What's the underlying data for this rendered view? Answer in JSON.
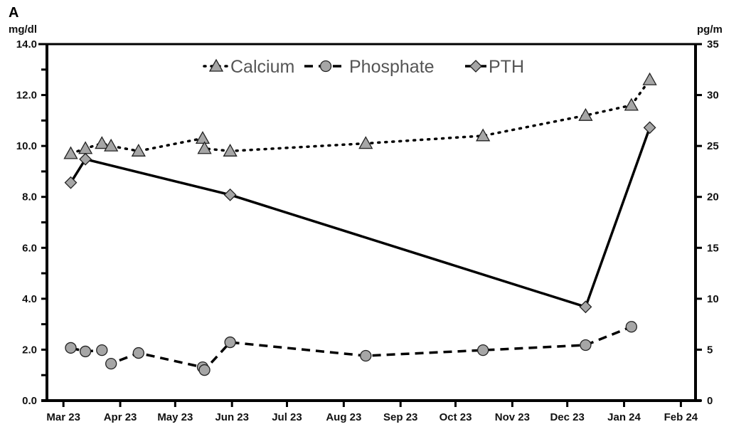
{
  "chart_data": {
    "type": "line",
    "panel_label": "A",
    "ylabel_left": "mg/dl",
    "ylabel_right": "pg/m",
    "ylim_left": [
      0,
      14
    ],
    "ylim_right": [
      0,
      35
    ],
    "yticks_left": [
      "0.0",
      "2.0",
      "4.0",
      "6.0",
      "8.0",
      "10.0",
      "12.0",
      "14.0"
    ],
    "yticks_right": [
      "0",
      "5",
      "10",
      "15",
      "20",
      "25",
      "30",
      "35"
    ],
    "xlim": [
      "2023-02-20",
      "2024-02-09"
    ],
    "xticks": [
      {
        "date": "2023-03-01",
        "label": "Mar 23"
      },
      {
        "date": "2023-04-01",
        "label": "Apr 23"
      },
      {
        "date": "2023-05-01",
        "label": "May 23"
      },
      {
        "date": "2023-06-01",
        "label": "Jun 23"
      },
      {
        "date": "2023-07-01",
        "label": "Jul 23"
      },
      {
        "date": "2023-08-01",
        "label": "Aug 23"
      },
      {
        "date": "2023-09-01",
        "label": "Sep 23"
      },
      {
        "date": "2023-10-01",
        "label": "Oct 23"
      },
      {
        "date": "2023-11-01",
        "label": "Nov 23"
      },
      {
        "date": "2023-12-01",
        "label": "Dec 23"
      },
      {
        "date": "2024-01-01",
        "label": "Jan 24"
      },
      {
        "date": "2024-02-01",
        "label": "Feb 24"
      }
    ],
    "grid": false,
    "legend_placement": "top-center",
    "series": [
      {
        "name": "Calcium",
        "axis": "left",
        "marker": "triangle",
        "line": "dotted",
        "color": "#a6a6a6",
        "x": [
          "2023-03-05",
          "2023-03-13",
          "2023-03-22",
          "2023-03-27",
          "2023-04-11",
          "2023-05-16",
          "2023-05-17",
          "2023-05-31",
          "2023-08-13",
          "2023-10-16",
          "2023-12-11",
          "2024-01-05",
          "2024-01-15"
        ],
        "y": [
          9.7,
          9.9,
          10.1,
          10.0,
          9.8,
          10.3,
          9.9,
          9.8,
          10.1,
          10.4,
          11.2,
          11.6,
          12.6
        ]
      },
      {
        "name": "Phosphate",
        "axis": "left",
        "marker": "circle",
        "line": "dashed",
        "color": "#a6a6a6",
        "x": [
          "2023-03-05",
          "2023-03-13",
          "2023-03-22",
          "2023-03-27",
          "2023-04-11",
          "2023-05-16",
          "2023-05-17",
          "2023-05-31",
          "2023-08-13",
          "2023-10-16",
          "2023-12-11",
          "2024-01-05"
        ],
        "y": [
          2.07,
          1.93,
          1.98,
          1.45,
          1.87,
          1.31,
          1.2,
          2.29,
          1.76,
          1.98,
          2.18,
          2.9
        ]
      },
      {
        "name": "PTH",
        "axis": "right",
        "marker": "diamond",
        "line": "solid",
        "color": "#a6a6a6",
        "x": [
          "2023-03-05",
          "2023-03-13",
          "2023-05-31",
          "2023-12-11",
          "2024-01-15"
        ],
        "y": [
          21.4,
          23.7,
          20.2,
          9.2,
          26.8
        ]
      }
    ]
  }
}
